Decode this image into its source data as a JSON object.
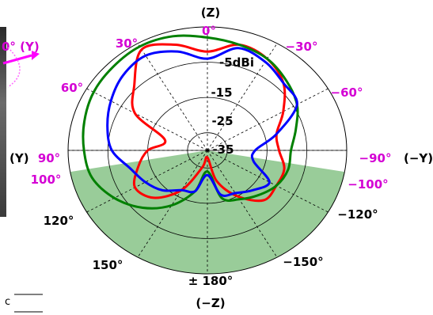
{
  "chart_data": {
    "type": "polar",
    "r_unit": "dBi",
    "rlim": [
      -40,
      -5
    ],
    "ring_labels": [
      "-5dBi",
      "-15",
      "-25",
      "-35"
    ],
    "axis_labels": {
      "top": "(Z)",
      "bottom": "(−Z)",
      "left": "(Y)",
      "right": "(−Y)"
    },
    "angle_labels": [
      {
        "text": "0°",
        "angle": 0,
        "color": "#d400d4"
      },
      {
        "text": "30°",
        "angle": 30,
        "color": "#d400d4"
      },
      {
        "text": "−30°",
        "angle": -30,
        "color": "#d400d4"
      },
      {
        "text": "60°",
        "angle": 60,
        "color": "#d400d4"
      },
      {
        "text": "−60°",
        "angle": -60,
        "color": "#d400d4"
      },
      {
        "text": "90°",
        "angle": 90,
        "color": "#d400d4"
      },
      {
        "text": "−90°",
        "angle": -90,
        "color": "#d400d4"
      },
      {
        "text": "100°",
        "angle": 100,
        "color": "#d400d4"
      },
      {
        "text": "−100°",
        "angle": -100,
        "color": "#d400d4"
      },
      {
        "text": "120°",
        "angle": 120,
        "color": "#000000"
      },
      {
        "text": "−120°",
        "angle": -120,
        "color": "#000000"
      },
      {
        "text": "150°",
        "angle": 150,
        "color": "#000000"
      },
      {
        "text": "−150°",
        "angle": -150,
        "color": "#000000"
      },
      {
        "text": "± 180°",
        "angle": 180,
        "color": "#000000"
      }
    ],
    "shaded_sector": {
      "from": 100,
      "to": 260,
      "color": "#99cc99"
    },
    "partial_labels": [
      "0°  (Y)",
      "c"
    ],
    "series": [
      {
        "color": "#ff0000",
        "angles": [
          0,
          15,
          30,
          45,
          60,
          75,
          90,
          105,
          120,
          135,
          150,
          165,
          180,
          195,
          210,
          225,
          240,
          255,
          270,
          285,
          300,
          315,
          330,
          345
        ],
        "values": [
          -12,
          -9,
          -7,
          -14,
          -19,
          -29,
          -25,
          -22,
          -19,
          -21,
          -27,
          -35,
          -38,
          -31,
          -25,
          -20,
          -20,
          -20,
          -22,
          -22,
          -18,
          -13,
          -10,
          -9
        ]
      },
      {
        "color": "#008000",
        "angles": [
          0,
          15,
          30,
          45,
          60,
          75,
          90,
          105,
          120,
          135,
          150,
          165,
          180,
          195,
          210,
          225,
          240,
          255,
          270,
          285,
          300,
          315,
          330,
          345
        ],
        "values": [
          -8,
          -6.5,
          -6,
          -6.5,
          -7,
          -8,
          -9,
          -10,
          -13,
          -17,
          -22,
          -28,
          -34,
          -26,
          -24,
          -22,
          -20,
          -19,
          -19,
          -17,
          -14,
          -12,
          -10,
          -9
        ]
      },
      {
        "color": "#0000ff",
        "angles": [
          0,
          15,
          30,
          45,
          60,
          75,
          90,
          105,
          120,
          135,
          150,
          165,
          180,
          195,
          210,
          225,
          240,
          255,
          270,
          285,
          300,
          315,
          330,
          345
        ],
        "values": [
          -14,
          -11,
          -9,
          -10,
          -12,
          -14,
          -16,
          -20,
          -22,
          -24,
          -27,
          -28,
          -33,
          -27,
          -26,
          -24,
          -22,
          -28,
          -28,
          -22,
          -14,
          -13,
          -11,
          -10
        ]
      }
    ]
  }
}
